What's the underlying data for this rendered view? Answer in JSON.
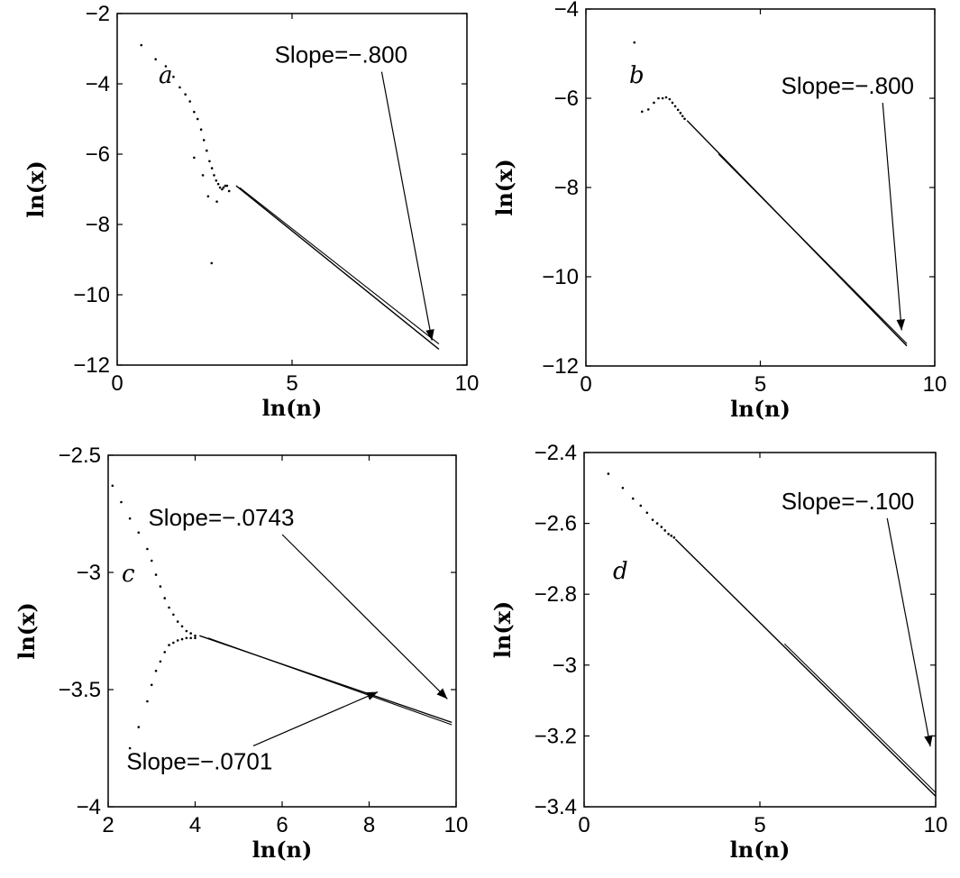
{
  "chart_data": [
    {
      "panel": "a",
      "type": "scatter",
      "xlabel": "ln(n)",
      "ylabel": "ln(x)",
      "xlim": [
        0,
        10
      ],
      "ylim": [
        -12,
        -2
      ],
      "xticks": [
        0,
        5,
        10
      ],
      "yticks": [
        -12,
        -10,
        -8,
        -6,
        -4,
        -2
      ],
      "xtick_labels": [
        "0",
        "5",
        "10"
      ],
      "ytick_labels": [
        "−12",
        "−10",
        "−8",
        "−6",
        "−4",
        "−2"
      ],
      "grid": false,
      "scatter_points": [
        [
          0.69,
          -2.9
        ],
        [
          1.1,
          -3.3
        ],
        [
          1.39,
          -3.5
        ],
        [
          1.61,
          -3.8
        ],
        [
          1.79,
          -4.1
        ],
        [
          1.95,
          -4.3
        ],
        [
          2.08,
          -4.5
        ],
        [
          2.2,
          -4.8
        ],
        [
          2.3,
          -5.0
        ],
        [
          2.4,
          -5.3
        ],
        [
          2.48,
          -5.6
        ],
        [
          2.56,
          -5.9
        ],
        [
          2.64,
          -6.2
        ],
        [
          2.71,
          -6.4
        ],
        [
          2.77,
          -6.6
        ],
        [
          2.83,
          -6.75
        ],
        [
          2.89,
          -6.85
        ],
        [
          2.94,
          -6.95
        ],
        [
          3.0,
          -7.0
        ],
        [
          3.04,
          -6.95
        ],
        [
          3.09,
          -6.9
        ],
        [
          3.14,
          -6.9
        ],
        [
          2.2,
          -6.1
        ],
        [
          2.45,
          -6.6
        ],
        [
          2.6,
          -7.2
        ],
        [
          2.85,
          -7.35
        ],
        [
          3.2,
          -7.05
        ],
        [
          2.7,
          -9.1
        ]
      ],
      "series": [
        {
          "x": [
            3.4,
            9.2
          ],
          "y": [
            -6.9,
            -11.55
          ]
        },
        {
          "x": [
            3.5,
            9.2
          ],
          "y": [
            -6.95,
            -11.4
          ]
        }
      ],
      "annotations": [
        {
          "text": "Slope=−.800",
          "label_at": [
            6.4,
            -3.4
          ],
          "arrow_to": [
            9.0,
            -11.3
          ]
        }
      ]
    },
    {
      "panel": "b",
      "type": "scatter",
      "xlabel": "ln(n)",
      "ylabel": "ln(x)",
      "xlim": [
        0,
        10
      ],
      "ylim": [
        -12,
        -4
      ],
      "xticks": [
        0,
        5,
        10
      ],
      "yticks": [
        -12,
        -10,
        -8,
        -6,
        -4
      ],
      "xtick_labels": [
        "0",
        "5",
        "10"
      ],
      "ytick_labels": [
        "−12",
        "−10",
        "−8",
        "−6",
        "−4"
      ],
      "grid": false,
      "scatter_points": [
        [
          1.39,
          -4.75
        ],
        [
          1.61,
          -6.3
        ],
        [
          1.79,
          -6.25
        ],
        [
          1.95,
          -6.1
        ],
        [
          2.08,
          -6.0
        ],
        [
          2.2,
          -6.0
        ],
        [
          2.3,
          -5.98
        ],
        [
          2.4,
          -6.02
        ],
        [
          2.48,
          -6.1
        ],
        [
          2.56,
          -6.18
        ],
        [
          2.64,
          -6.26
        ],
        [
          2.71,
          -6.33
        ],
        [
          2.77,
          -6.4
        ],
        [
          2.83,
          -6.46
        ]
      ],
      "series": [
        {
          "x": [
            2.9,
            9.2
          ],
          "y": [
            -6.5,
            -11.55
          ]
        },
        {
          "x": [
            3.8,
            9.2
          ],
          "y": [
            -7.25,
            -11.5
          ]
        }
      ],
      "annotations": [
        {
          "text": "Slope=−.800",
          "label_at": [
            7.5,
            -5.9
          ],
          "arrow_to": [
            9.05,
            -11.2
          ]
        }
      ]
    },
    {
      "panel": "c",
      "type": "scatter",
      "xlabel": "ln(n)",
      "ylabel": "ln(x)",
      "xlim": [
        2,
        10
      ],
      "ylim": [
        -4,
        -2.5
      ],
      "xticks": [
        2,
        4,
        6,
        8,
        10
      ],
      "yticks": [
        -4,
        -3.5,
        -3,
        -2.5
      ],
      "xtick_labels": [
        "2",
        "4",
        "6",
        "8",
        "10"
      ],
      "ytick_labels": [
        "−4",
        "−3.5",
        "−3",
        "−2.5"
      ],
      "grid": false,
      "scatter_points": [
        [
          2.1,
          -2.63
        ],
        [
          2.3,
          -2.7
        ],
        [
          2.5,
          -2.77
        ],
        [
          2.7,
          -2.83
        ],
        [
          2.9,
          -2.9
        ],
        [
          3.0,
          -2.95
        ],
        [
          3.1,
          -3.01
        ],
        [
          3.2,
          -3.06
        ],
        [
          3.3,
          -3.11
        ],
        [
          3.4,
          -3.15
        ],
        [
          3.5,
          -3.18
        ],
        [
          3.6,
          -3.21
        ],
        [
          3.7,
          -3.23
        ],
        [
          3.8,
          -3.25
        ],
        [
          3.9,
          -3.26
        ],
        [
          4.0,
          -3.27
        ],
        [
          2.5,
          -3.75
        ],
        [
          2.7,
          -3.66
        ],
        [
          2.9,
          -3.55
        ],
        [
          3.0,
          -3.48
        ],
        [
          3.1,
          -3.42
        ],
        [
          3.2,
          -3.38
        ],
        [
          3.3,
          -3.34
        ],
        [
          3.4,
          -3.31
        ],
        [
          3.5,
          -3.3
        ],
        [
          3.6,
          -3.29
        ],
        [
          3.7,
          -3.285
        ],
        [
          3.8,
          -3.28
        ],
        [
          3.9,
          -3.28
        ],
        [
          4.0,
          -3.28
        ]
      ],
      "series": [
        {
          "x": [
            4.1,
            9.9
          ],
          "y": [
            -3.27,
            -3.64
          ]
        },
        {
          "x": [
            4.3,
            9.9
          ],
          "y": [
            -3.28,
            -3.65
          ]
        }
      ],
      "annotations": [
        {
          "text": "Slope=−.0743",
          "label_at": [
            4.6,
            -2.8
          ],
          "arrow_to": [
            9.8,
            -3.54
          ]
        },
        {
          "text": "Slope=−.0701",
          "label_at": [
            4.1,
            -3.84
          ],
          "arrow_to": [
            8.2,
            -3.51
          ]
        }
      ]
    },
    {
      "panel": "d",
      "type": "scatter",
      "xlabel": "ln(n)",
      "ylabel": "ln(x)",
      "xlim": [
        0,
        10
      ],
      "ylim": [
        -3.4,
        -2.4
      ],
      "xticks": [
        0,
        5,
        10
      ],
      "yticks": [
        -3.4,
        -3.2,
        -3.0,
        -2.8,
        -2.6,
        -2.4
      ],
      "xtick_labels": [
        "0",
        "5",
        "10"
      ],
      "ytick_labels": [
        "−3.4",
        "−3.2",
        "−3",
        "−2.8",
        "−2.6",
        "−2.4"
      ],
      "grid": false,
      "scatter_points": [
        [
          0.69,
          -2.46
        ],
        [
          1.1,
          -2.5
        ],
        [
          1.39,
          -2.53
        ],
        [
          1.61,
          -2.55
        ],
        [
          1.79,
          -2.57
        ],
        [
          1.95,
          -2.59
        ],
        [
          2.08,
          -2.6
        ],
        [
          2.2,
          -2.61
        ],
        [
          2.3,
          -2.62
        ],
        [
          2.4,
          -2.63
        ],
        [
          2.48,
          -2.635
        ],
        [
          2.56,
          -2.64
        ]
      ],
      "series": [
        {
          "x": [
            2.6,
            10.0
          ],
          "y": [
            -2.645,
            -3.37
          ]
        },
        {
          "x": [
            5.7,
            10.0
          ],
          "y": [
            -2.94,
            -3.36
          ]
        }
      ],
      "annotations": [
        {
          "text": "Slope=−.100",
          "label_at": [
            7.5,
            -2.56
          ],
          "arrow_to": [
            9.85,
            -3.23
          ]
        }
      ]
    }
  ]
}
